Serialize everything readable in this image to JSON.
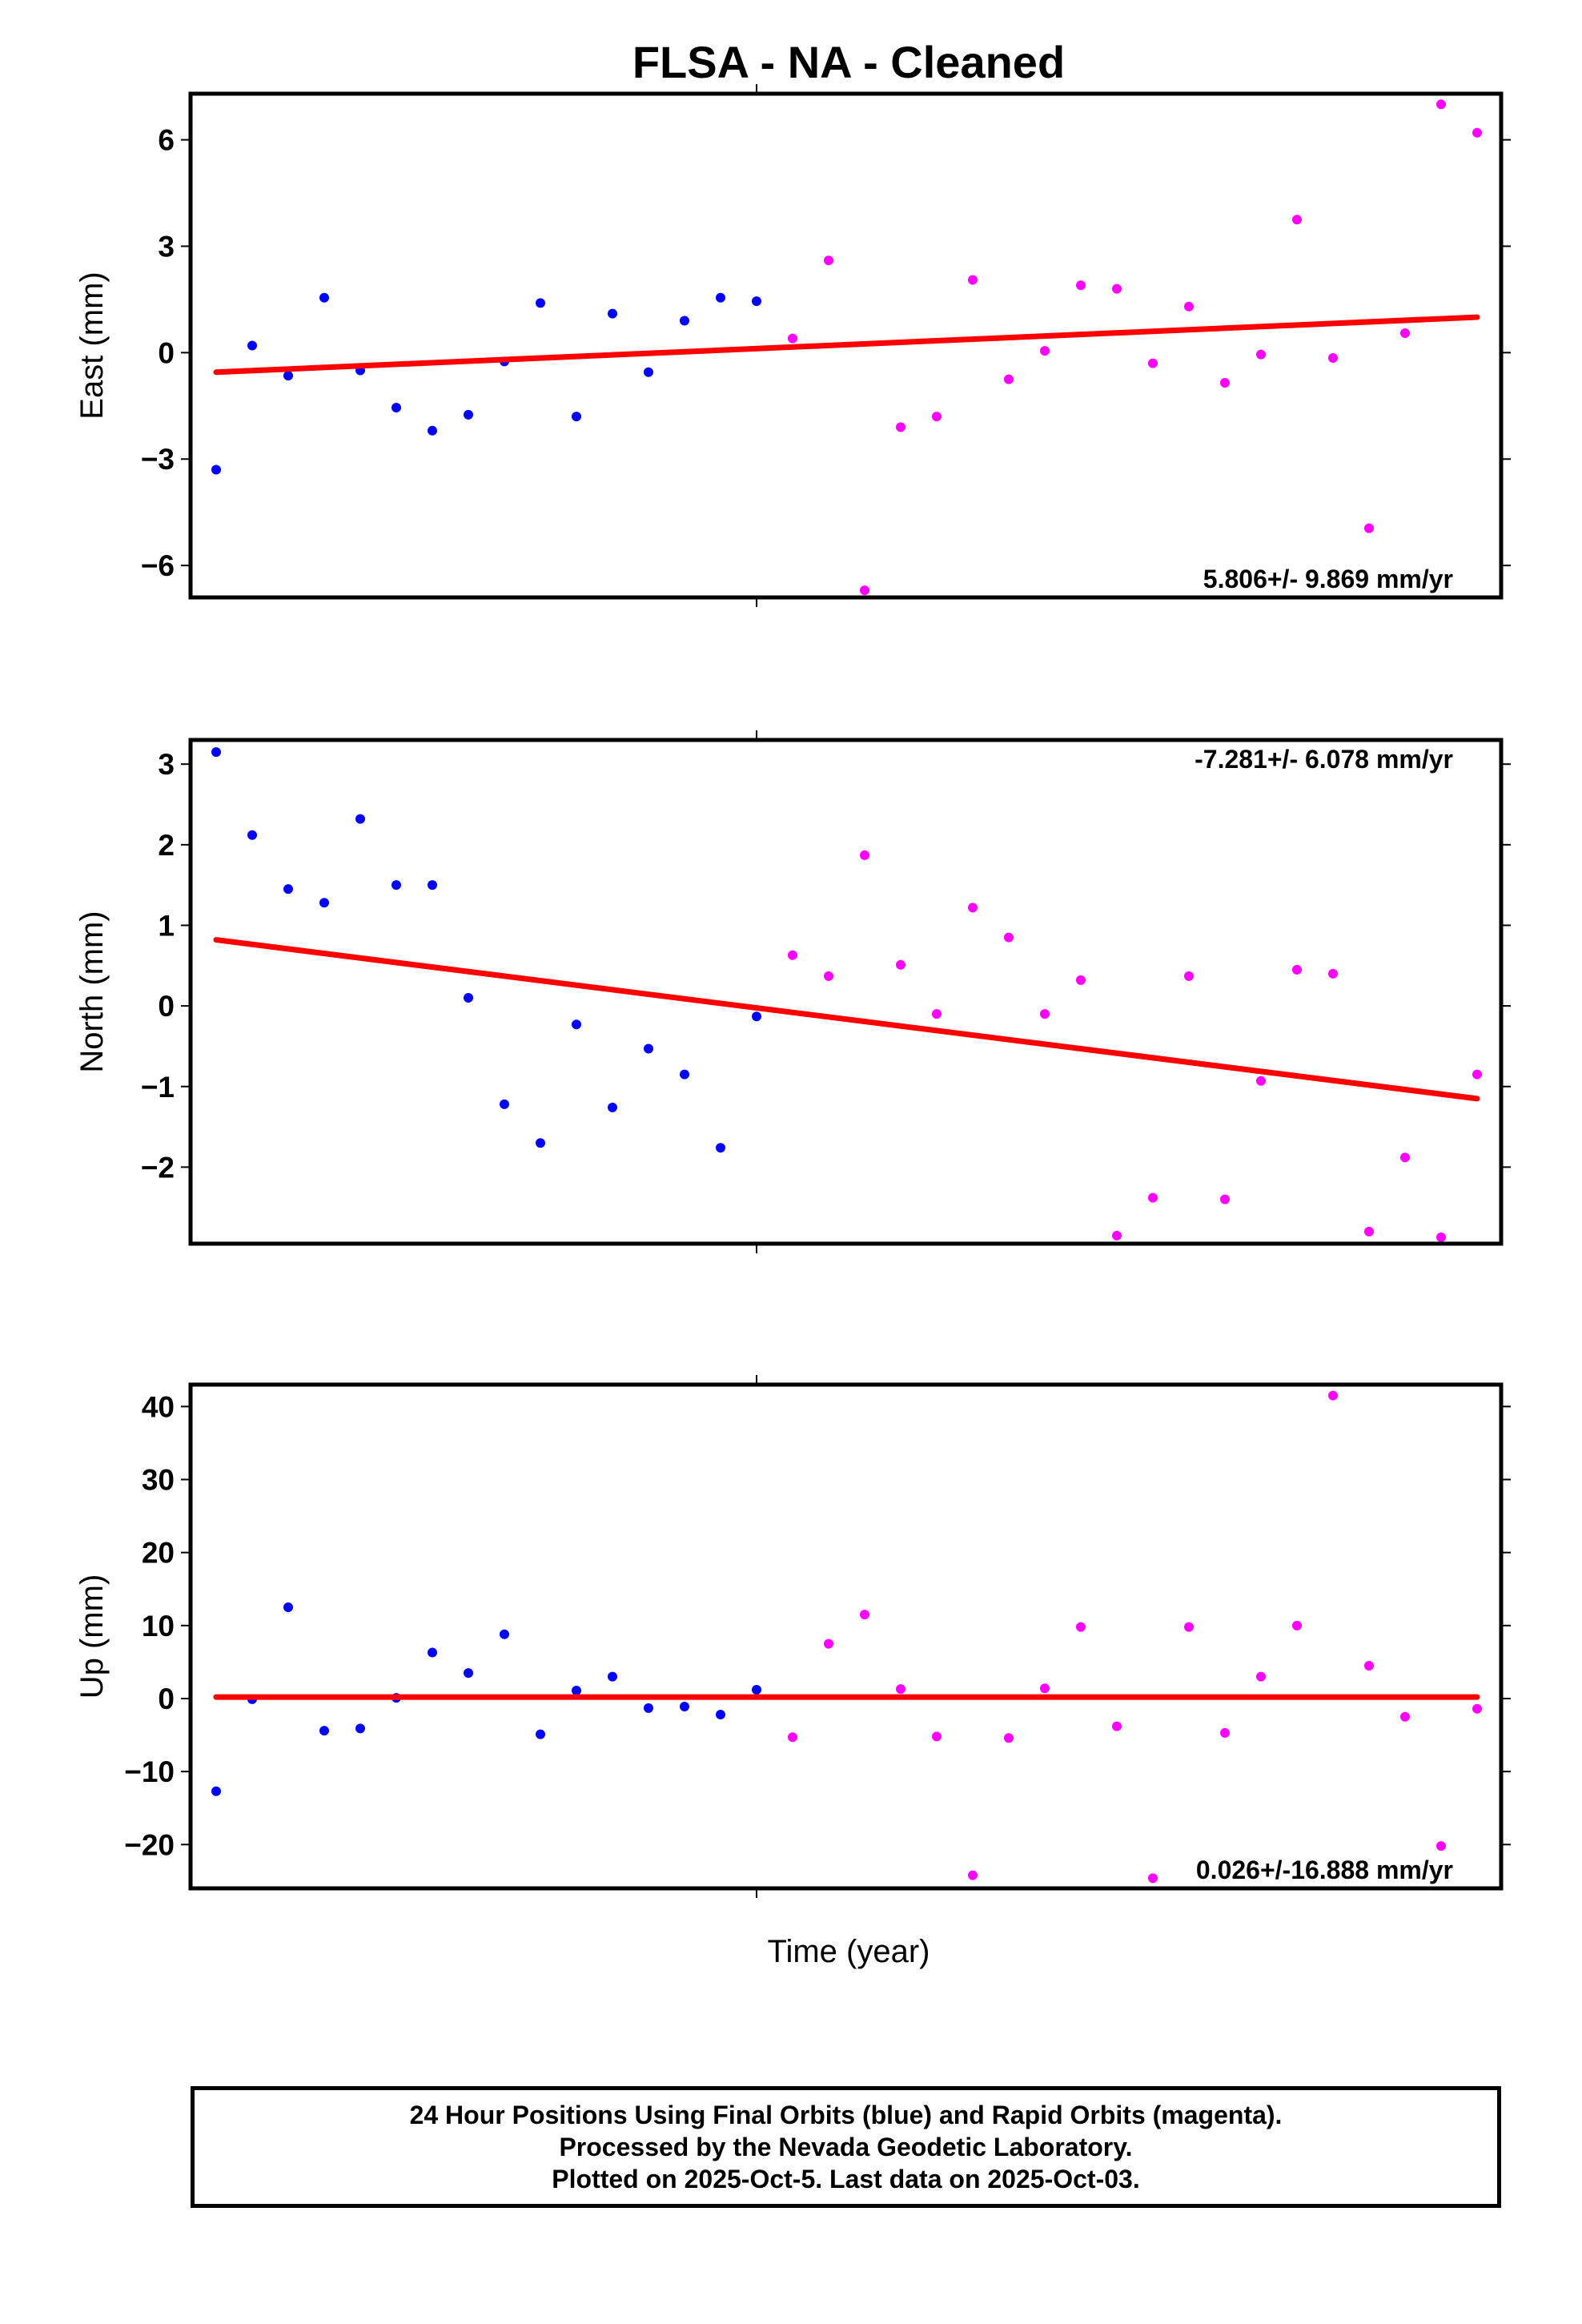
{
  "title": "FLSA  - NA - Cleaned",
  "xlabel": "Time (year)",
  "caption": [
    "24 Hour Positions Using Final Orbits (blue) and Rapid Orbits (magenta).",
    "Processed by the Nevada Geodetic Laboratory.",
    "Plotted on 2025-Oct-5. Last data on 2025-Oct-03."
  ],
  "colors": {
    "final": "#0000ff",
    "rapid": "#ff00ff",
    "trend": "#ff0000"
  },
  "chart_data": [
    {
      "type": "scatter",
      "name": "east",
      "ylabel": "East (mm)",
      "ylim": [
        -6.9,
        7.3
      ],
      "yticks": [
        6,
        3,
        0,
        -3,
        -6
      ],
      "ytick_labels": [
        "6",
        "3",
        "0",
        "−3",
        "−6"
      ],
      "rate": "5.806+/- 9.869 mm/yr",
      "rate_pos": "bottom-right",
      "trend": [
        -0.55,
        1.0
      ],
      "final": [
        -3.3,
        0.2,
        -0.65,
        1.55,
        -0.5,
        -1.55,
        -2.2,
        -1.75,
        -0.25,
        1.4,
        -1.8,
        1.1,
        -0.55,
        0.9,
        1.55,
        1.45
      ],
      "rapid": [
        0.4,
        2.6,
        -6.7,
        -2.1,
        -1.8,
        2.05,
        -0.75,
        0.05,
        1.9,
        1.8,
        -0.3,
        1.3,
        -0.85,
        -0.05,
        3.75,
        -0.15,
        -4.95,
        0.55,
        7.0,
        6.2
      ]
    },
    {
      "type": "scatter",
      "name": "north",
      "ylabel": "North (mm)",
      "ylim": [
        -2.95,
        3.3
      ],
      "yticks": [
        3,
        2,
        1,
        0,
        -1,
        -2
      ],
      "ytick_labels": [
        "3",
        "2",
        "1",
        "0",
        "−1",
        "−2"
      ],
      "rate": "-7.281+/- 6.078 mm/yr",
      "rate_pos": "top-right",
      "trend": [
        0.82,
        -1.15
      ],
      "final": [
        3.15,
        2.12,
        1.45,
        1.28,
        2.32,
        1.5,
        1.5,
        0.1,
        -1.22,
        -1.7,
        -0.23,
        -1.26,
        -0.53,
        -0.85,
        -1.76,
        -0.13
      ],
      "rapid": [
        0.63,
        0.37,
        1.87,
        0.51,
        -0.1,
        1.22,
        0.85,
        -0.1,
        0.32,
        -2.85,
        -2.38,
        0.37,
        -2.4,
        -0.93,
        0.45,
        0.4,
        -2.8,
        -1.88,
        -2.87,
        -0.85
      ]
    },
    {
      "type": "scatter",
      "name": "up",
      "ylabel": "Up (mm)",
      "ylim": [
        -26,
        43
      ],
      "yticks": [
        40,
        30,
        20,
        10,
        0,
        -10,
        -20
      ],
      "ytick_labels": [
        "40",
        "30",
        "20",
        "10",
        "0",
        "−10",
        "−20"
      ],
      "rate": "0.026+/-16.888 mm/yr",
      "rate_pos": "bottom-right",
      "trend": [
        0.2,
        0.2
      ],
      "final": [
        -12.7,
        -0.1,
        12.5,
        -4.4,
        -4.1,
        0.1,
        6.3,
        3.5,
        8.8,
        -4.9,
        1.1,
        3.0,
        -1.3,
        -1.1,
        -2.2,
        1.2
      ],
      "rapid": [
        -5.3,
        7.5,
        11.5,
        1.3,
        -5.2,
        -24.2,
        -5.4,
        1.4,
        9.8,
        -3.8,
        -24.6,
        9.8,
        -4.7,
        3.0,
        10.0,
        41.5,
        4.5,
        -2.5,
        -20.2,
        -1.4
      ]
    }
  ]
}
